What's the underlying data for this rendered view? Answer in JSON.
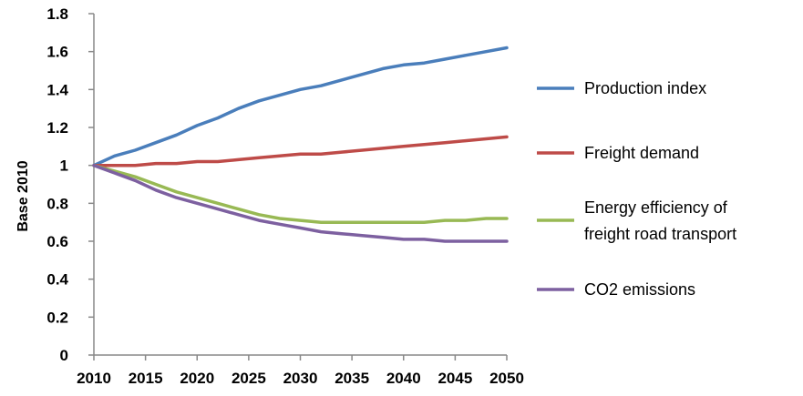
{
  "chart_data": {
    "type": "line",
    "ylabel": "Base  2010",
    "ylim": [
      0,
      1.8
    ],
    "y_ticks": [
      "0",
      "0.2",
      "0.4",
      "0.6",
      "0.8",
      "1",
      "1.2",
      "1.4",
      "1.6",
      "1.8"
    ],
    "x_tick_labels": [
      "2010",
      "2015",
      "2020",
      "2025",
      "2030",
      "2035",
      "2040",
      "2045",
      "2050"
    ],
    "x": [
      2010,
      2012,
      2014,
      2016,
      2018,
      2020,
      2022,
      2024,
      2026,
      2028,
      2030,
      2032,
      2034,
      2036,
      2038,
      2040,
      2042,
      2044,
      2046,
      2048,
      2050
    ],
    "legend_position": "right",
    "grid": false,
    "series": [
      {
        "name": "Production index",
        "color": "#4a7ebb",
        "values": [
          1.0,
          1.05,
          1.08,
          1.12,
          1.16,
          1.21,
          1.25,
          1.3,
          1.34,
          1.37,
          1.4,
          1.42,
          1.45,
          1.48,
          1.51,
          1.53,
          1.54,
          1.56,
          1.58,
          1.6,
          1.62
        ]
      },
      {
        "name": "Freight demand",
        "color": "#be4b48",
        "values": [
          1.0,
          1.0,
          1.0,
          1.01,
          1.01,
          1.02,
          1.02,
          1.03,
          1.04,
          1.05,
          1.06,
          1.06,
          1.07,
          1.08,
          1.09,
          1.1,
          1.11,
          1.12,
          1.13,
          1.14,
          1.15
        ]
      },
      {
        "name": "Energy efficiency of freight road transport",
        "name_lines": [
          "Energy efficiency of",
          "freight road transport"
        ],
        "color": "#98b954",
        "values": [
          1.0,
          0.97,
          0.94,
          0.9,
          0.86,
          0.83,
          0.8,
          0.77,
          0.74,
          0.72,
          0.71,
          0.7,
          0.7,
          0.7,
          0.7,
          0.7,
          0.7,
          0.71,
          0.71,
          0.72,
          0.72
        ]
      },
      {
        "name": "CO2 emissions",
        "color": "#7d60a0",
        "values": [
          1.0,
          0.96,
          0.92,
          0.87,
          0.83,
          0.8,
          0.77,
          0.74,
          0.71,
          0.69,
          0.67,
          0.65,
          0.64,
          0.63,
          0.62,
          0.61,
          0.61,
          0.6,
          0.6,
          0.6,
          0.6
        ]
      }
    ]
  }
}
